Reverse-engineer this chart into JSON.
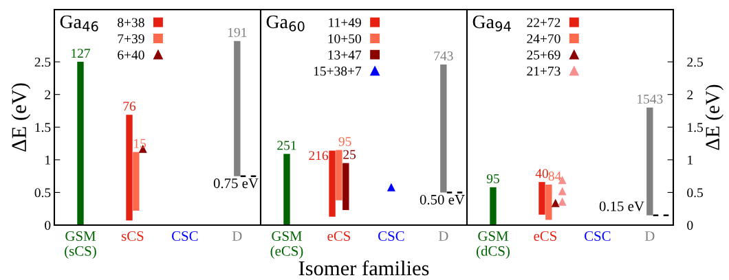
{
  "chart_data": [
    {
      "type": "bar",
      "title": "Ga$_{46}$",
      "categories": [
        "GSM\n(sCS)",
        "sCS",
        "CSC",
        "D"
      ],
      "ylim": [
        0,
        3.3
      ],
      "yticks": [
        0,
        0.5,
        1,
        1.5,
        2,
        2.5
      ],
      "ylabel": "ΔE (eV)",
      "legend": "top",
      "ref_lines": [
        {
          "axis": "y",
          "value": 0.75,
          "label": "0.75 eV",
          "color": "#000000",
          "line_style": "dashed"
        }
      ],
      "annotations": [
        {
          "text": "127",
          "x": "GSM\n(sCS)",
          "y": 2.5
        },
        {
          "text": "76",
          "x": "sCS",
          "y": 1.69
        },
        {
          "text": "15",
          "x": "sCS",
          "y": 1.12
        },
        {
          "text": "191",
          "x": "D",
          "y": 2.82
        }
      ],
      "series": [
        {
          "color": "#006400",
          "values": [
            2.5,
            null,
            null,
            null
          ],
          "base": [
            0,
            null,
            null,
            null
          ]
        },
        {
          "name": "8+38",
          "color": "#e62112",
          "values": [
            null,
            1.62,
            null,
            null
          ],
          "base": [
            null,
            0.07,
            null,
            null
          ]
        },
        {
          "name": "7+39",
          "color": "#fd6a4e",
          "values": [
            null,
            0.9,
            null,
            null
          ],
          "base": [
            null,
            0.22,
            null,
            null
          ]
        },
        {
          "name": "6+40",
          "type": "scatter",
          "marker": "triangle",
          "color": "#8b0000",
          "x": [
            "sCS"
          ],
          "values": [
            1.17
          ]
        },
        {
          "color": "#808080",
          "values": [
            null,
            null,
            null,
            2.07
          ],
          "base": [
            null,
            null,
            null,
            0.75
          ]
        }
      ]
    },
    {
      "type": "bar",
      "title": "Ga$_{60}$",
      "categories": [
        "GSM\n(eCS)",
        "eCS",
        "CSC",
        "D"
      ],
      "ylim": [
        0,
        3.3
      ],
      "xlabel": "Isomer families",
      "tick_labels": "x",
      "legend": "top",
      "ref_lines": [
        {
          "axis": "y",
          "value": 0.5,
          "label": "0.50 eV",
          "color": "#000000",
          "line_style": "dashed"
        }
      ],
      "annotations": [
        {
          "text": "251",
          "x": "GSM\n(eCS)",
          "y": 1.09
        },
        {
          "text": "216",
          "x": "eCS",
          "y": 1.14
        },
        {
          "text": "95",
          "x": "eCS",
          "y": 1.15
        },
        {
          "text": "25",
          "x": "eCS",
          "y": 0.95
        },
        {
          "text": "743",
          "x": "D",
          "y": 2.46
        }
      ],
      "series": [
        {
          "color": "#006400",
          "values": [
            1.09,
            null,
            null,
            null
          ],
          "base": [
            0,
            null,
            null,
            null
          ]
        },
        {
          "name": "11+49",
          "color": "#e62112",
          "values": [
            null,
            1.01,
            null,
            null
          ],
          "base": [
            null,
            0.13,
            null,
            null
          ]
        },
        {
          "name": "10+50",
          "color": "#fd6a4e",
          "values": [
            null,
            0.77,
            null,
            null
          ],
          "base": [
            null,
            0.38,
            null,
            null
          ]
        },
        {
          "name": "13+47",
          "color": "#8b0000",
          "values": [
            null,
            0.72,
            null,
            null
          ],
          "base": [
            null,
            0.23,
            null,
            null
          ]
        },
        {
          "name": "15+38+7",
          "type": "scatter",
          "marker": "triangle",
          "color": "#0000ff",
          "x": [
            "CSC"
          ],
          "values": [
            0.58
          ]
        },
        {
          "color": "#808080",
          "values": [
            null,
            null,
            null,
            1.96
          ],
          "base": [
            null,
            null,
            null,
            0.5
          ]
        }
      ]
    },
    {
      "type": "bar",
      "title": "Ga$_{94}$",
      "categories": [
        "GSM\n(dCS)",
        "eCS",
        "CSC",
        "D"
      ],
      "ylim": [
        0,
        3.3
      ],
      "yticks": [
        0,
        0.5,
        1,
        1.5,
        2,
        2.5
      ],
      "ylabel": "ΔE (eV)",
      "legend": "top",
      "ref_lines": [
        {
          "axis": "y",
          "value": 0.15,
          "label": "0.15 eV",
          "color": "#000000",
          "line_style": "dashed"
        }
      ],
      "annotations": [
        {
          "text": "95",
          "x": "GSM\n(dCS)",
          "y": 0.58
        },
        {
          "text": "40",
          "x": "eCS",
          "y": 0.66
        },
        {
          "text": "84",
          "x": "eCS",
          "y": 0.62
        },
        {
          "text": "1543",
          "x": "D",
          "y": 1.8
        }
      ],
      "series": [
        {
          "color": "#006400",
          "values": [
            0.58,
            null,
            null,
            null
          ],
          "base": [
            0,
            null,
            null,
            null
          ]
        },
        {
          "name": "22+72",
          "color": "#e62112",
          "values": [
            null,
            0.5,
            null,
            null
          ],
          "base": [
            null,
            0.16,
            null,
            null
          ]
        },
        {
          "name": "24+70",
          "color": "#fd6a4e",
          "values": [
            null,
            0.54,
            null,
            null
          ],
          "base": [
            null,
            0.08,
            null,
            null
          ]
        },
        {
          "name": "25+69",
          "type": "scatter",
          "marker": "triangle",
          "color": "#8b0000",
          "x": [
            "eCS"
          ],
          "values": [
            0.34
          ]
        },
        {
          "name": "21+73",
          "type": "scatter",
          "marker": "triangle",
          "color": "#f78f8f",
          "x": [
            "eCS",
            "eCS",
            "eCS"
          ],
          "values": [
            0.69,
            0.52,
            0.36
          ]
        },
        {
          "color": "#808080",
          "values": [
            null,
            null,
            null,
            1.65
          ],
          "base": [
            null,
            null,
            null,
            0.15
          ]
        }
      ]
    }
  ]
}
